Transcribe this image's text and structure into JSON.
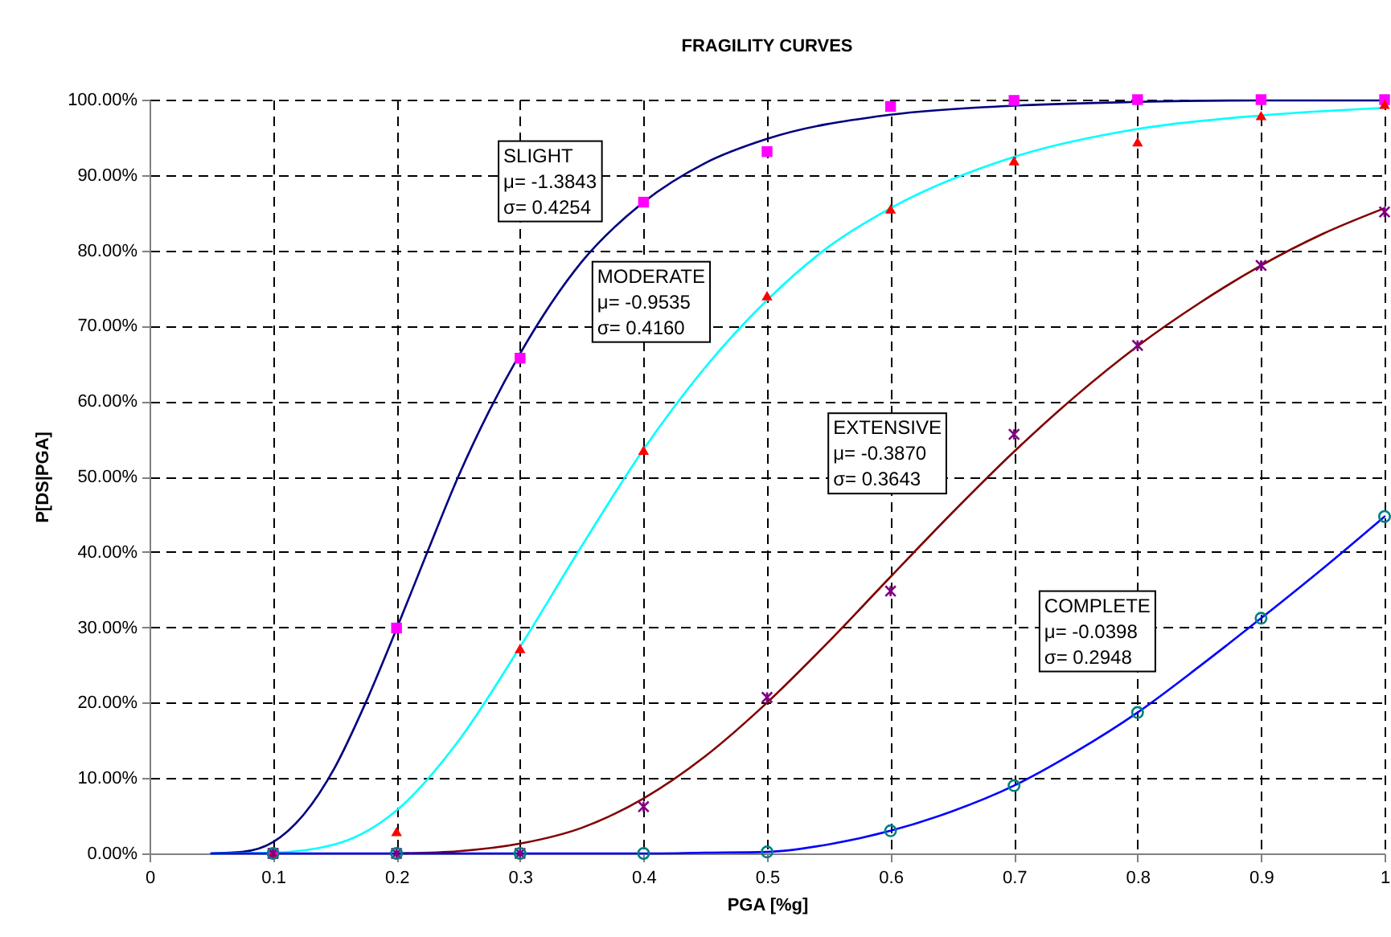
{
  "chart_data": {
    "type": "line",
    "title": "FRAGILITY CURVES",
    "xlabel": "PGA [%g]",
    "ylabel": "P[DS|PGA]",
    "x": [
      0.1,
      0.2,
      0.3,
      0.4,
      0.5,
      0.6,
      0.7,
      0.8,
      0.9,
      1
    ],
    "series": [
      {
        "type": "line",
        "color": "#000080",
        "x": [
          0.05,
          0.075,
          0.1,
          0.125,
          0.15,
          0.175,
          0.2,
          0.225,
          0.25,
          0.275,
          0.3,
          0.35,
          0.4,
          0.45,
          0.5,
          0.6,
          0.7,
          0.8,
          0.9,
          1
        ],
        "values": [
          0,
          0.2,
          1.5,
          5.2,
          11.4,
          20,
          29.8,
          40,
          50,
          58.7,
          66.3,
          78.5,
          86.4,
          91.6,
          94.8,
          98,
          99.2,
          99.7,
          99.9,
          99.9
        ]
      },
      {
        "type": "line",
        "color": "#00ffff",
        "x": [
          0.05,
          0.1,
          0.15,
          0.2,
          0.25,
          0.3,
          0.35,
          0.4,
          0.45,
          0.5,
          0.55,
          0.6,
          0.7,
          0.8,
          0.9,
          1
        ],
        "values": [
          0,
          0.1,
          1.2,
          5.7,
          14.9,
          27.4,
          40.8,
          53.6,
          64.5,
          73.4,
          80.5,
          85.6,
          92.4,
          96.1,
          97.9,
          98.9
        ]
      },
      {
        "type": "line",
        "color": "#800000",
        "x": [
          0.2,
          0.25,
          0.3,
          0.35,
          0.4,
          0.45,
          0.5,
          0.55,
          0.6,
          0.65,
          0.7,
          0.75,
          0.8,
          0.85,
          0.9,
          0.95,
          1
        ],
        "values": [
          0,
          0.3,
          1.3,
          3.4,
          7.3,
          12.9,
          20,
          28.1,
          36.7,
          45.2,
          53.3,
          60.7,
          67.3,
          73,
          78,
          82.2,
          85.6
        ]
      },
      {
        "type": "line",
        "color": "#0000ff",
        "x": [
          0.05,
          0.2,
          0.3,
          0.4,
          0.45,
          0.5,
          0.55,
          0.6,
          0.65,
          0.7,
          0.75,
          0.8,
          0.85,
          0.9,
          0.95,
          1
        ],
        "values": [
          0,
          0,
          0,
          0,
          0.1,
          0.2,
          1.2,
          3,
          5.6,
          9,
          13.5,
          18.7,
          24.8,
          31.2,
          37.8,
          44.7
        ]
      },
      {
        "type": "scatter",
        "color": "#ff00ff",
        "marker": "square",
        "values": [
          0,
          29.9,
          65.7,
          86.4,
          93.1,
          99.1,
          99.9,
          100,
          100,
          100
        ]
      },
      {
        "type": "scatter",
        "color": "#ff0000",
        "marker": "triangle",
        "values": [
          0,
          2.9,
          27.2,
          53.5,
          74,
          85.5,
          91.9,
          94.4,
          97.9,
          99.4
        ]
      },
      {
        "type": "scatter",
        "color": "#800080",
        "marker": "cross",
        "values": [
          0,
          0,
          0,
          6.2,
          20.7,
          34.8,
          55.6,
          67.4,
          78,
          85.1
        ]
      },
      {
        "type": "scatter",
        "color": "#008080",
        "marker": "circle",
        "values": [
          0,
          0,
          0,
          0,
          0.2,
          3,
          9,
          18.7,
          31.2,
          44.7
        ]
      }
    ],
    "annotations": [
      "SLIGHT\nμ= -1.3843\nσ= 0.4254",
      "MODERATE\nμ= -0.9535\nσ= 0.4160",
      "EXTENSIVE\nμ= -0.3870\nσ= 0.3643",
      "COMPLETE\nμ= -0.0398\nσ= 0.2948"
    ],
    "xlim": [
      0,
      1
    ],
    "xticks": [
      0,
      0.1,
      0.2,
      0.3,
      0.4,
      0.5,
      0.6,
      0.7,
      0.8,
      0.9,
      1
    ],
    "ylim": [
      0,
      100
    ],
    "yticks": [
      {
        "value": 0,
        "label": "0.00%"
      },
      {
        "value": 10,
        "label": "10.00%"
      },
      {
        "value": 20,
        "label": "20.00%"
      },
      {
        "value": 30,
        "label": "30.00%"
      },
      {
        "value": 40,
        "label": "40.00%"
      },
      {
        "value": 50,
        "label": "50.00%"
      },
      {
        "value": 60,
        "label": "60.00%"
      },
      {
        "value": 70,
        "label": "70.00%"
      },
      {
        "value": 80,
        "label": "80.00%"
      },
      {
        "value": 90,
        "label": "90.00%"
      },
      {
        "value": 100,
        "label": "100.00%"
      }
    ],
    "grid": true
  }
}
